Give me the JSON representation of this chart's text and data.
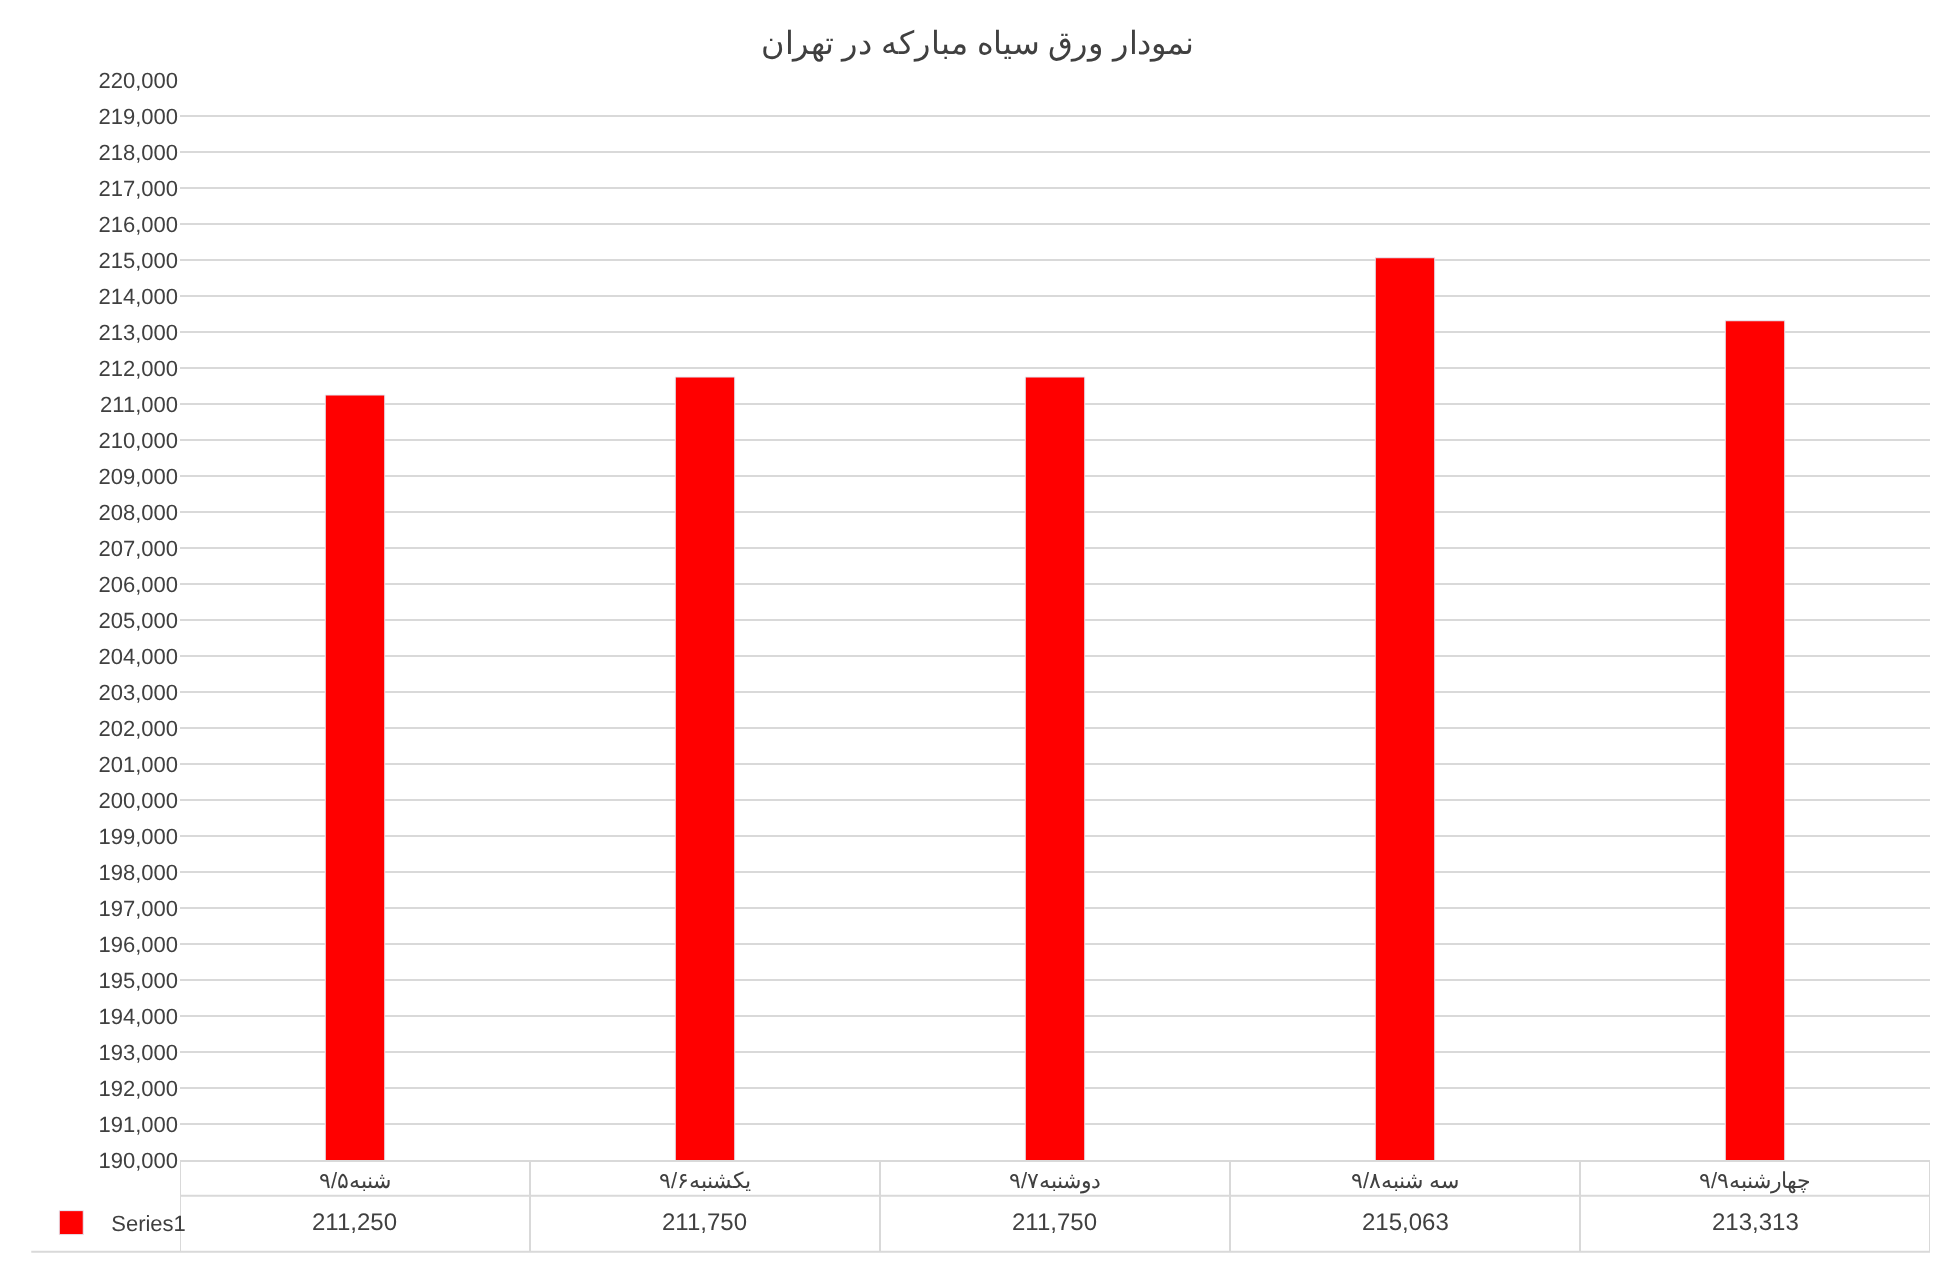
{
  "chart_data": {
    "type": "bar",
    "title": "نمودار ورق سیاه مبارکه در تهران",
    "categories": [
      "شنبه۹/۵",
      "یکشنبه۹/۶",
      "دوشنبه۹/۷",
      "سه شنبه۹/۸",
      "چهارشنبه۹/۹"
    ],
    "series": [
      {
        "name": "Series1",
        "color": "#ff0000",
        "values": [
          211250,
          211750,
          211750,
          215063,
          213313
        ],
        "value_labels": [
          "211,250",
          "211,750",
          "211,750",
          "215,063",
          "213,313"
        ]
      }
    ],
    "ylim": [
      190000,
      220000
    ],
    "yticks": [
      {
        "value": 190000,
        "label": "190,000"
      },
      {
        "value": 191000,
        "label": "191,000"
      },
      {
        "value": 192000,
        "label": "192,000"
      },
      {
        "value": 193000,
        "label": "193,000"
      },
      {
        "value": 194000,
        "label": "194,000"
      },
      {
        "value": 195000,
        "label": "195,000"
      },
      {
        "value": 196000,
        "label": "196,000"
      },
      {
        "value": 197000,
        "label": "197,000"
      },
      {
        "value": 198000,
        "label": "198,000"
      },
      {
        "value": 199000,
        "label": "199,000"
      },
      {
        "value": 200000,
        "label": "200,000"
      },
      {
        "value": 201000,
        "label": "201,000"
      },
      {
        "value": 202000,
        "label": "202,000"
      },
      {
        "value": 203000,
        "label": "203,000"
      },
      {
        "value": 204000,
        "label": "204,000"
      },
      {
        "value": 205000,
        "label": "205,000"
      },
      {
        "value": 206000,
        "label": "206,000"
      },
      {
        "value": 207000,
        "label": "207,000"
      },
      {
        "value": 208000,
        "label": "208,000"
      },
      {
        "value": 209000,
        "label": "209,000"
      },
      {
        "value": 210000,
        "label": "210,000"
      },
      {
        "value": 211000,
        "label": "211,000"
      },
      {
        "value": 212000,
        "label": "212,000"
      },
      {
        "value": 213000,
        "label": "213,000"
      },
      {
        "value": 214000,
        "label": "214,000"
      },
      {
        "value": 215000,
        "label": "215,000"
      },
      {
        "value": 216000,
        "label": "216,000"
      },
      {
        "value": 217000,
        "label": "217,000"
      },
      {
        "value": 218000,
        "label": "218,000"
      },
      {
        "value": 219000,
        "label": "219,000"
      },
      {
        "value": 220000,
        "label": "220,000"
      }
    ],
    "grid": "y",
    "legend": "bottom left"
  }
}
